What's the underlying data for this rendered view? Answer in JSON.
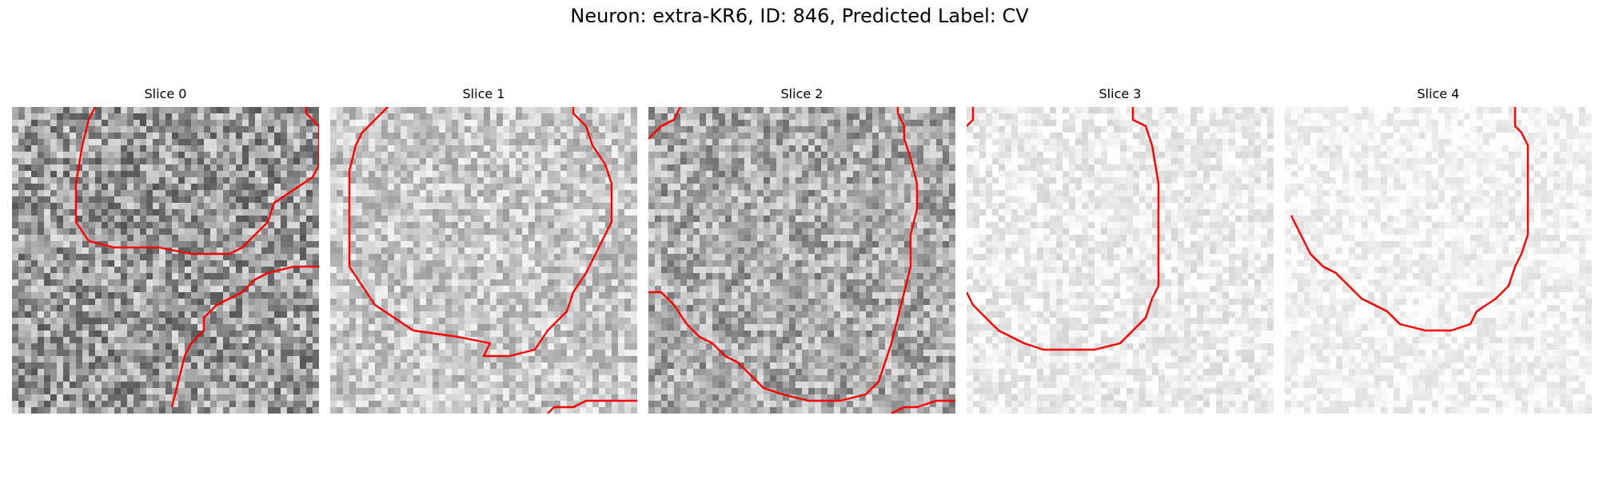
{
  "figure": {
    "title": "Neuron: extra-KR6, ID: 846, Predicted Label: CV"
  },
  "colors": {
    "contour": "#ff0000"
  },
  "panels": [
    {
      "title": "Slice 0",
      "base": "#9a9a9a",
      "contrast": 0.55,
      "seed": 11,
      "contours": [
        [
          [
            13,
            0
          ],
          [
            12,
            2
          ],
          [
            11,
            6
          ],
          [
            10,
            12
          ],
          [
            10,
            18
          ],
          [
            12,
            21
          ],
          [
            16,
            22
          ],
          [
            23,
            22
          ],
          [
            28,
            23
          ],
          [
            34,
            23
          ],
          [
            36,
            22
          ],
          [
            38,
            20
          ],
          [
            40,
            18
          ],
          [
            41,
            15
          ],
          [
            44,
            13
          ],
          [
            47,
            11
          ],
          [
            48,
            9
          ],
          [
            48,
            3
          ],
          [
            46,
            1
          ],
          [
            46,
            0
          ]
        ],
        [
          [
            48,
            25
          ],
          [
            44,
            25
          ],
          [
            40,
            26
          ],
          [
            38,
            27
          ],
          [
            36,
            29
          ],
          [
            32,
            31
          ],
          [
            30,
            33
          ],
          [
            30,
            35
          ],
          [
            28,
            37
          ],
          [
            27,
            39
          ],
          [
            26,
            43
          ],
          [
            25,
            47
          ]
        ]
      ]
    },
    {
      "title": "Slice 1",
      "base": "#c8c8c8",
      "contrast": 0.35,
      "seed": 23,
      "contours": [
        [
          [
            9,
            0
          ],
          [
            7,
            2
          ],
          [
            5,
            4
          ],
          [
            4,
            6
          ],
          [
            3,
            10
          ],
          [
            3,
            15
          ],
          [
            3,
            20
          ],
          [
            3,
            25
          ],
          [
            5,
            28
          ],
          [
            7,
            31
          ],
          [
            10,
            33
          ],
          [
            13,
            35
          ],
          [
            20,
            36
          ],
          [
            25,
            37
          ],
          [
            24,
            39
          ],
          [
            28,
            39
          ],
          [
            32,
            38
          ],
          [
            34,
            35
          ],
          [
            37,
            32
          ],
          [
            38,
            29
          ],
          [
            40,
            26
          ],
          [
            42,
            22
          ],
          [
            44,
            18
          ],
          [
            44,
            12
          ],
          [
            43,
            9
          ],
          [
            41,
            6
          ],
          [
            40,
            3
          ],
          [
            38,
            1
          ],
          [
            38,
            0
          ]
        ],
        [
          [
            48,
            46
          ],
          [
            45,
            46
          ],
          [
            40,
            46
          ],
          [
            38,
            47
          ],
          [
            35,
            47
          ],
          [
            34,
            48
          ]
        ]
      ]
    },
    {
      "title": "Slice 2",
      "base": "#a8a8a8",
      "contrast": 0.45,
      "seed": 37,
      "contours": [
        [
          [
            5,
            0
          ],
          [
            4,
            2
          ],
          [
            2,
            3
          ],
          [
            0,
            5
          ]
        ],
        [
          [
            0,
            29
          ],
          [
            2,
            29
          ],
          [
            4,
            31
          ],
          [
            6,
            34
          ],
          [
            8,
            36
          ],
          [
            10,
            37
          ],
          [
            12,
            39
          ],
          [
            14,
            40
          ],
          [
            16,
            42
          ],
          [
            18,
            44
          ],
          [
            21,
            45
          ],
          [
            25,
            46
          ],
          [
            30,
            46
          ],
          [
            34,
            45
          ],
          [
            36,
            43
          ],
          [
            37,
            40
          ],
          [
            38,
            37
          ],
          [
            39,
            33
          ],
          [
            40,
            29
          ],
          [
            41,
            25
          ],
          [
            41,
            20
          ],
          [
            42,
            16
          ],
          [
            42,
            12
          ],
          [
            41,
            8
          ],
          [
            40,
            5
          ],
          [
            40,
            3
          ],
          [
            39,
            1
          ],
          [
            39,
            0
          ]
        ],
        [
          [
            48,
            46
          ],
          [
            45,
            46
          ],
          [
            42,
            47
          ],
          [
            40,
            47
          ],
          [
            38,
            48
          ]
        ]
      ]
    },
    {
      "title": "Slice 3",
      "base": "#ececec",
      "contrast": 0.18,
      "seed": 53,
      "contours": [
        [
          [
            1,
            0
          ],
          [
            1,
            2
          ],
          [
            0,
            3
          ]
        ],
        [
          [
            0,
            29
          ],
          [
            1,
            31
          ],
          [
            3,
            33
          ],
          [
            5,
            35
          ],
          [
            7,
            36
          ],
          [
            9,
            37
          ],
          [
            12,
            38
          ],
          [
            16,
            38
          ],
          [
            20,
            38
          ],
          [
            24,
            37
          ],
          [
            26,
            35
          ],
          [
            28,
            33
          ],
          [
            29,
            30
          ],
          [
            30,
            28
          ],
          [
            30,
            24
          ],
          [
            30,
            18
          ],
          [
            30,
            12
          ],
          [
            29,
            6
          ],
          [
            28,
            3
          ],
          [
            26,
            2
          ],
          [
            26,
            0
          ]
        ]
      ]
    },
    {
      "title": "Slice 4",
      "base": "#f2f2f2",
      "contrast": 0.15,
      "seed": 71,
      "contours": [
        [
          [
            1,
            17
          ],
          [
            2,
            19
          ],
          [
            3,
            21
          ],
          [
            4,
            23
          ],
          [
            6,
            25
          ],
          [
            8,
            26
          ],
          [
            10,
            28
          ],
          [
            12,
            30
          ],
          [
            14,
            31
          ],
          [
            16,
            32
          ],
          [
            18,
            34
          ],
          [
            22,
            35
          ],
          [
            26,
            35
          ],
          [
            29,
            34
          ],
          [
            30,
            32
          ],
          [
            33,
            30
          ],
          [
            35,
            28
          ],
          [
            36,
            25
          ],
          [
            37,
            23
          ],
          [
            38,
            20
          ],
          [
            38,
            15
          ],
          [
            38,
            10
          ],
          [
            38,
            6
          ],
          [
            37,
            4
          ],
          [
            36,
            3
          ],
          [
            36,
            0
          ]
        ]
      ]
    }
  ]
}
